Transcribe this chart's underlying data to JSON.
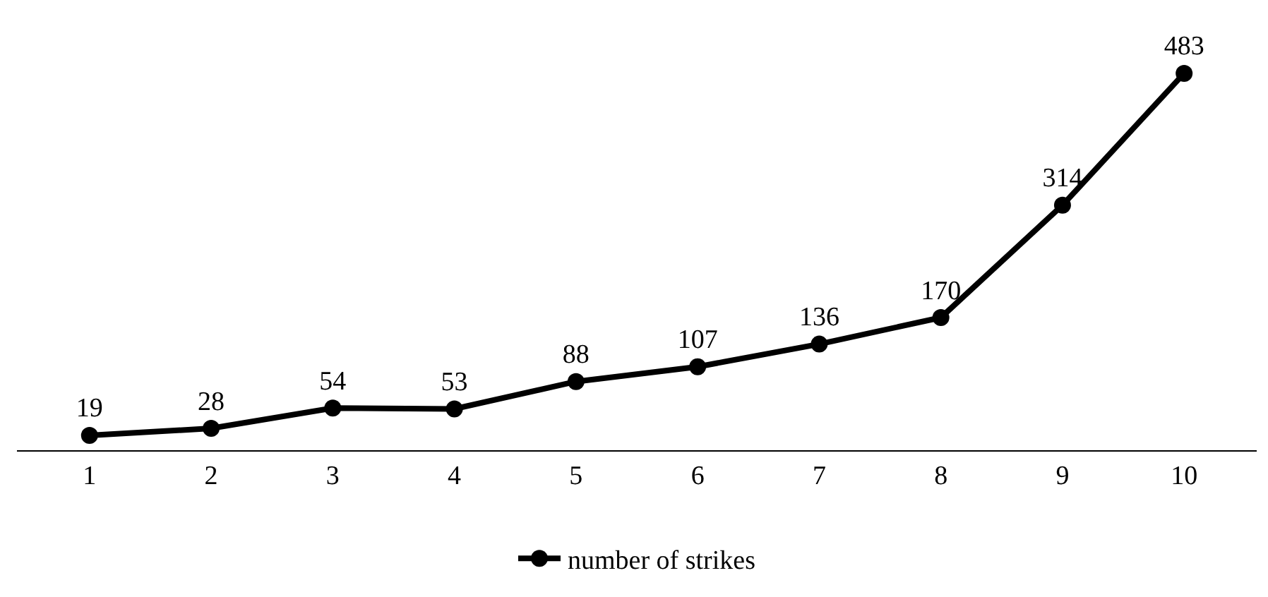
{
  "chart_data": {
    "type": "line",
    "categories": [
      "1",
      "2",
      "3",
      "4",
      "5",
      "6",
      "7",
      "8",
      "9",
      "10"
    ],
    "series": [
      {
        "name": "number of strikes",
        "color": "#000000",
        "values": [
          19,
          28,
          54,
          53,
          88,
          107,
          136,
          170,
          314,
          483
        ]
      }
    ],
    "tick_labels": "x",
    "data_labels": true,
    "marker": "circle",
    "line_style": "solid",
    "legend": "bottom",
    "grid": false
  }
}
